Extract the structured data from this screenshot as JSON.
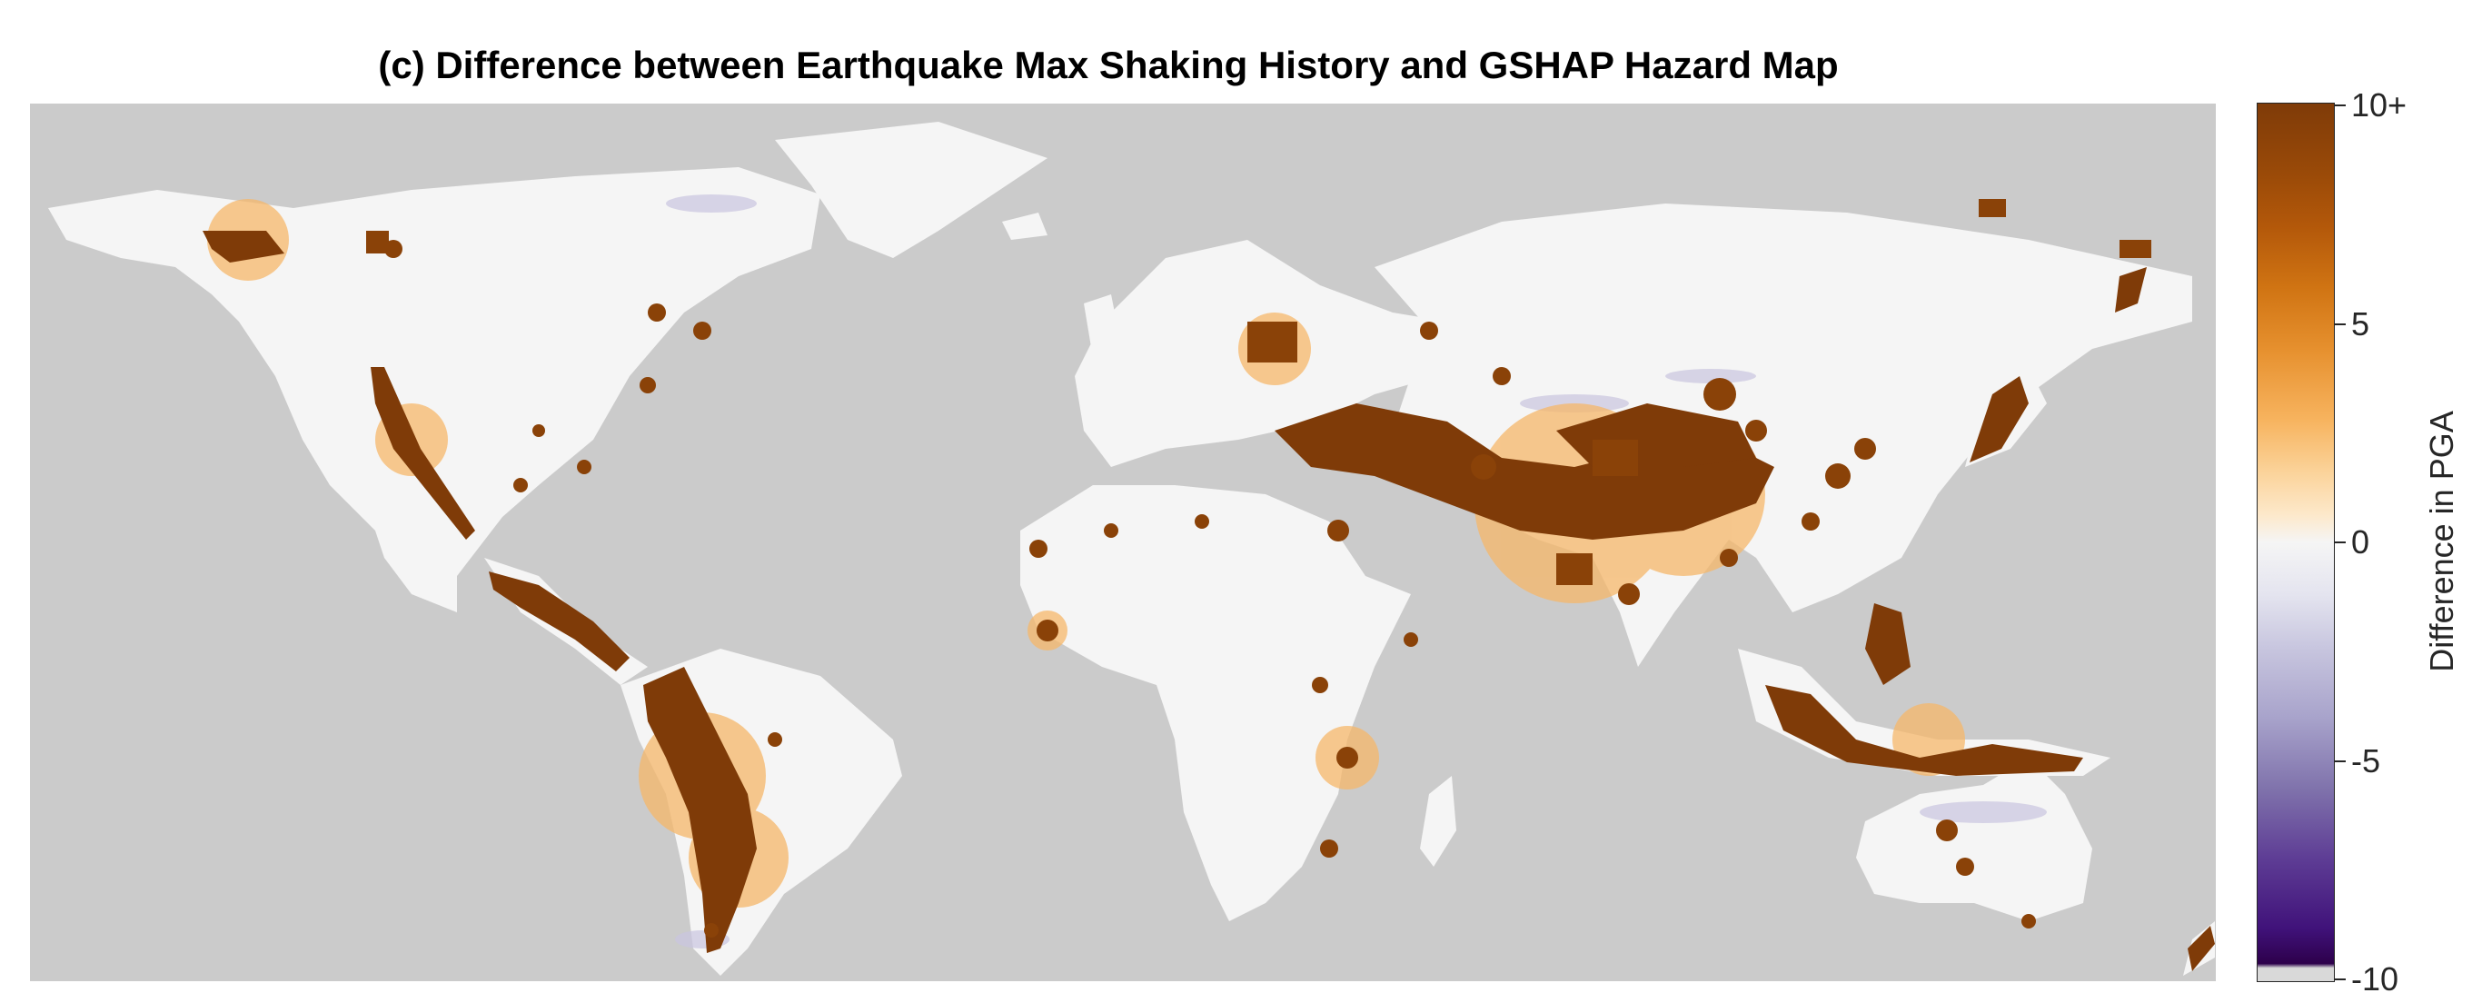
{
  "figure": {
    "title": "(c) Difference between Earthquake Max Shaking History and GSHAP Hazard Map"
  },
  "map": {
    "projection": "equirectangular",
    "lon_range": [
      -180,
      180
    ],
    "lat_range": [
      -60,
      85
    ],
    "background_color": "#cbcbcb",
    "land_color": "#f5f5f5",
    "note_colors": {
      "positive_max": "#7f3b08",
      "positive_mid": "#f5a448",
      "neutral": "#f5f5f5",
      "negative_max": "#2d004b"
    }
  },
  "colorbar": {
    "label": "Difference in PGA",
    "range": [
      -10,
      10
    ],
    "ticks": [
      {
        "value": 10,
        "label": "10+"
      },
      {
        "value": 5,
        "label": "5"
      },
      {
        "value": 0,
        "label": "0"
      },
      {
        "value": -5,
        "label": "-5"
      },
      {
        "value": -10,
        "label": "-10"
      }
    ]
  }
}
